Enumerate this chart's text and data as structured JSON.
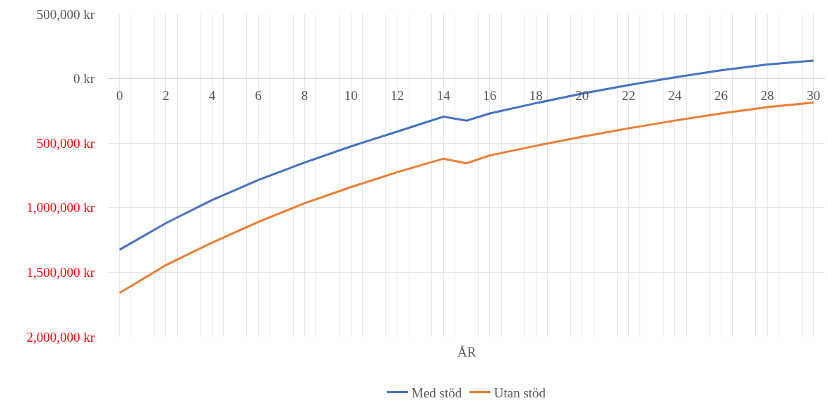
{
  "chart_data": {
    "type": "line",
    "xlabel": "ÅR",
    "x": [
      0,
      2,
      4,
      6,
      8,
      10,
      12,
      14,
      15,
      16,
      18,
      20,
      22,
      24,
      26,
      28,
      30
    ],
    "series": [
      {
        "name": "Med stöd",
        "color": "#4472c4",
        "values": [
          -1325000,
          -1120000,
          -940000,
          -785000,
          -650000,
          -525000,
          -410000,
          -295000,
          -325000,
          -270000,
          -190000,
          -115000,
          -50000,
          10000,
          65000,
          110000,
          140000
        ]
      },
      {
        "name": "Utan stöd",
        "color": "#ed7d31",
        "values": [
          -1660000,
          -1445000,
          -1270000,
          -1110000,
          -965000,
          -840000,
          -725000,
          -620000,
          -655000,
          -595000,
          -520000,
          -450000,
          -385000,
          -325000,
          -270000,
          -220000,
          -185000
        ]
      }
    ],
    "xlim": [
      -0.5,
      30.5
    ],
    "xticks": [
      0,
      2,
      4,
      6,
      8,
      10,
      12,
      14,
      16,
      18,
      20,
      22,
      24,
      26,
      28,
      30,
      {
        "value": 0.5,
        "label": null
      },
      {
        "value": 1.5,
        "label": null
      },
      {
        "value": 2.5,
        "label": null
      },
      {
        "value": 3.5,
        "label": null
      },
      {
        "value": 4.5,
        "label": null
      },
      {
        "value": 5.5,
        "label": null
      },
      {
        "value": 6.5,
        "label": null
      },
      {
        "value": 7.5,
        "label": null
      },
      {
        "value": 8.5,
        "label": null
      },
      {
        "value": 9.5,
        "label": null
      },
      {
        "value": 10.5,
        "label": null
      },
      {
        "value": 11.5,
        "label": null
      },
      {
        "value": 12.5,
        "label": null
      },
      {
        "value": 13.5,
        "label": null
      },
      {
        "value": 14.5,
        "label": null
      },
      {
        "value": 15.5,
        "label": null
      },
      {
        "value": 16.5,
        "label": null
      },
      {
        "value": 17.5,
        "label": null
      },
      {
        "value": 18.5,
        "label": null
      },
      {
        "value": 19.5,
        "label": null
      },
      {
        "value": 20.5,
        "label": null
      },
      {
        "value": 21.5,
        "label": null
      },
      {
        "value": 22.5,
        "label": null
      },
      {
        "value": 23.5,
        "label": null
      },
      {
        "value": 24.5,
        "label": null
      },
      {
        "value": 25.5,
        "label": null
      },
      {
        "value": 26.5,
        "label": null
      },
      {
        "value": 27.5,
        "label": null
      },
      {
        "value": 28.5,
        "label": null
      },
      {
        "value": 29.5,
        "label": null
      }
    ],
    "ylim": [
      -2000000,
      500000
    ],
    "yticks": [
      {
        "value": 500000,
        "label": "500,000 kr"
      },
      {
        "value": 0,
        "label": "0 kr"
      },
      {
        "value": -500000,
        "label": "500,000 kr"
      },
      {
        "value": -1000000,
        "label": "1,000,000 kr"
      },
      {
        "value": -1500000,
        "label": "1,500,000 kr"
      },
      {
        "value": -2000000,
        "label": "2,000,000 kr"
      }
    ],
    "grid": true,
    "legend": "bottom",
    "marker": "none",
    "line_style": "solid"
  }
}
